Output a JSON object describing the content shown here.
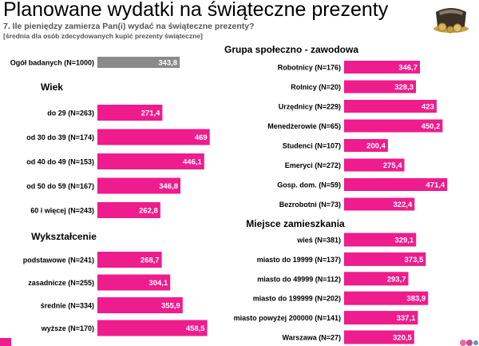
{
  "header": {
    "title": "Planowane wydatki na świąteczne prezenty",
    "question": "7. Ile pieniędzy zamierza Pan(i) wydać na świąteczne prezenty?",
    "note": "[średnia dla osób zdecydowanych kupić prezenty świąteczne]"
  },
  "colors": {
    "bar": "#ee1c8c",
    "total_bar": "#8a8a8a",
    "bar_text": "#ffffff"
  },
  "icons": {
    "wallet": "wallet-with-coins-icon",
    "corner": "corner-decoration-icon"
  },
  "chart_data": [
    {
      "type": "bar",
      "orientation": "horizontal",
      "title": "",
      "categories": [
        "Ogół badanych (N=1000)"
      ],
      "values": [
        343.8
      ],
      "xlim": [
        0,
        500
      ]
    },
    {
      "type": "bar",
      "orientation": "horizontal",
      "title": "Wiek",
      "categories": [
        "do 29 (N=263)",
        "od 30 do 39 (N=174)",
        "od 40 do 49 (N=153)",
        "od 50 do 59 (N=167)",
        "60 i więcej (N=243)"
      ],
      "values": [
        271.4,
        469,
        446.1,
        346.8,
        262.8
      ],
      "xlim": [
        0,
        500
      ]
    },
    {
      "type": "bar",
      "orientation": "horizontal",
      "title": "Wykształcenie",
      "categories": [
        "podstawowe (N=241)",
        "zasadnicze (N=255)",
        "średnie (N=334)",
        "wyższe (N=170)"
      ],
      "values": [
        268.7,
        304.1,
        355.9,
        458.5
      ],
      "xlim": [
        0,
        500
      ]
    },
    {
      "type": "bar",
      "orientation": "horizontal",
      "title": "Grupa społeczno - zawodowa",
      "categories": [
        "Robotnicy (N=176)",
        "Rolnicy (N=20)",
        "Urzędnicy (N=229)",
        "Menedżerowie (N=65)",
        "Studenci (N=107)",
        "Emeryci (N=272)",
        "Gosp. dom. (N=59)",
        "Bezrobotni (N=73)"
      ],
      "values": [
        346.7,
        328.3,
        423,
        450.2,
        200.4,
        275.4,
        471.4,
        322.4
      ],
      "xlim": [
        0,
        500
      ]
    },
    {
      "type": "bar",
      "orientation": "horizontal",
      "title": "Miejsce zamieszkania",
      "categories": [
        "wieś (N=381)",
        "miasto do 19999 (N=137)",
        "miasto do 49999 (N=112)",
        "miasto do 199999 (N=202)",
        "miasto powyżej 200000 (N=141)",
        "Warszawa (N=27)"
      ],
      "values": [
        329.1,
        373.5,
        293.7,
        383.9,
        337.1,
        320.5
      ],
      "xlim": [
        0,
        500
      ]
    }
  ]
}
